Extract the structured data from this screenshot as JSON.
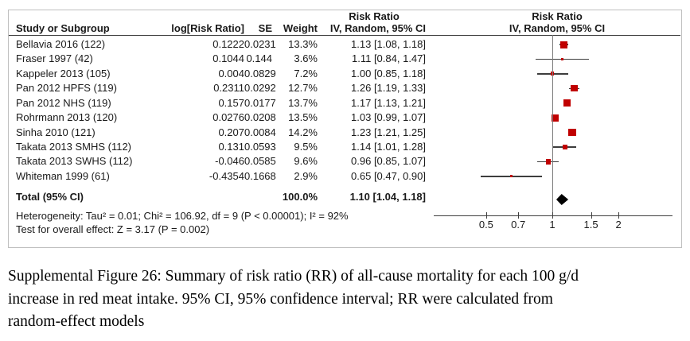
{
  "colors": {
    "marker_red": "#C00000",
    "line_dark": "#3D3D3D",
    "ref_line_gray": "#7A7A7A",
    "panel_border": "#BFBFBF",
    "text": "#1A1A1A"
  },
  "table": {
    "col_study": "Study or Subgroup",
    "col_logrr": "log[Risk Ratio]",
    "col_se": "SE",
    "col_weight": "Weight",
    "col_effect": "IV, Random, 95% CI",
    "effect_title": "Risk Ratio",
    "plot_title": "Risk Ratio",
    "plot_subtitle": "IV, Random, 95% CI"
  },
  "chart_data": {
    "type": "forest",
    "effect_measure": "Risk Ratio",
    "model": "IV, Random, 95% CI",
    "x_scale": "log",
    "axis_ticks": [
      0.5,
      0.7,
      1,
      1.5,
      2
    ],
    "reference_line": 1,
    "studies": [
      {
        "study": "Bellavia 2016 (122)",
        "log_rr": "0.1222",
        "se": "0.0231",
        "weight": "13.3%",
        "weight_pct": 13.3,
        "estimate": 1.13,
        "ci_low": 1.08,
        "ci_high": 1.18,
        "effect_label": "1.13 [1.08, 1.18]"
      },
      {
        "study": "Fraser 1997 (42)",
        "log_rr": "0.1044",
        "se": "0.144",
        "weight": "3.6%",
        "weight_pct": 3.6,
        "estimate": 1.11,
        "ci_low": 0.84,
        "ci_high": 1.47,
        "effect_label": "1.11 [0.84, 1.47]"
      },
      {
        "study": "Kappeler 2013 (105)",
        "log_rr": "0.004",
        "se": "0.0829",
        "weight": "7.2%",
        "weight_pct": 7.2,
        "estimate": 1.0,
        "ci_low": 0.85,
        "ci_high": 1.18,
        "effect_label": "1.00 [0.85, 1.18]"
      },
      {
        "study": "Pan 2012 HPFS (119)",
        "log_rr": "0.2311",
        "se": "0.0292",
        "weight": "12.7%",
        "weight_pct": 12.7,
        "estimate": 1.26,
        "ci_low": 1.19,
        "ci_high": 1.33,
        "effect_label": "1.26 [1.19, 1.33]"
      },
      {
        "study": "Pan 2012 NHS (119)",
        "log_rr": "0.157",
        "se": "0.0177",
        "weight": "13.7%",
        "weight_pct": 13.7,
        "estimate": 1.17,
        "ci_low": 1.13,
        "ci_high": 1.21,
        "effect_label": "1.17 [1.13, 1.21]"
      },
      {
        "study": "Rohrmann 2013 (120)",
        "log_rr": "0.0276",
        "se": "0.0208",
        "weight": "13.5%",
        "weight_pct": 13.5,
        "estimate": 1.03,
        "ci_low": 0.99,
        "ci_high": 1.07,
        "effect_label": "1.03 [0.99, 1.07]"
      },
      {
        "study": "Sinha 2010 (121)",
        "log_rr": "0.207",
        "se": "0.0084",
        "weight": "14.2%",
        "weight_pct": 14.2,
        "estimate": 1.23,
        "ci_low": 1.21,
        "ci_high": 1.25,
        "effect_label": "1.23 [1.21, 1.25]"
      },
      {
        "study": "Takata 2013 SMHS (112)",
        "log_rr": "0.131",
        "se": "0.0593",
        "weight": "9.5%",
        "weight_pct": 9.5,
        "estimate": 1.14,
        "ci_low": 1.01,
        "ci_high": 1.28,
        "effect_label": "1.14 [1.01, 1.28]"
      },
      {
        "study": "Takata 2013 SWHS (112)",
        "log_rr": "-0.046",
        "se": "0.0585",
        "weight": "9.6%",
        "weight_pct": 9.6,
        "estimate": 0.96,
        "ci_low": 0.85,
        "ci_high": 1.07,
        "effect_label": "0.96 [0.85, 1.07]"
      },
      {
        "study": "Whiteman 1999 (61)",
        "log_rr": "-0.4354",
        "se": "0.1668",
        "weight": "2.9%",
        "weight_pct": 2.9,
        "estimate": 0.65,
        "ci_low": 0.47,
        "ci_high": 0.9,
        "effect_label": "0.65 [0.47, 0.90]"
      }
    ],
    "total": {
      "label": "Total (95% CI)",
      "weight": "100.0%",
      "estimate": 1.1,
      "ci_low": 1.04,
      "ci_high": 1.18,
      "effect_label": "1.10 [1.04, 1.18]"
    },
    "heterogeneity": "Heterogeneity: Tau² = 0.01; Chi² = 106.92, df = 9 (P < 0.00001); I² = 92%",
    "overall_effect": "Test for overall effect: Z = 3.17 (P = 0.002)"
  },
  "caption_lines": [
    "Supplemental Figure 26: Summary of risk ratio (RR) of all-cause mortality for each 100 g/d",
    "increase in red meat intake. 95% CI, 95% confidence interval; RR were calculated from",
    "random-effect models"
  ]
}
